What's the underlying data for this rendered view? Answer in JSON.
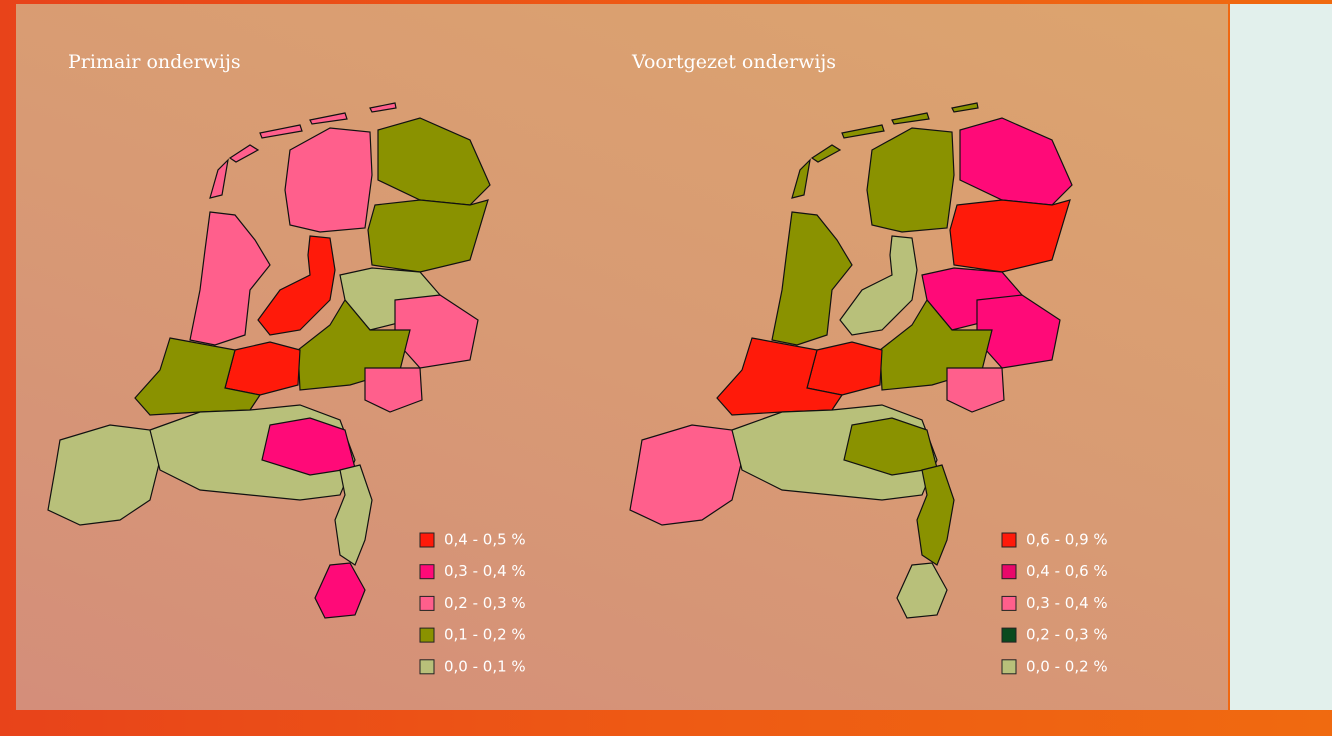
{
  "maps": [
    {
      "title": "Primair onderwijs",
      "legend": [
        {
          "label": "0,4 - 0,5 %",
          "color": "#ff1a0a"
        },
        {
          "label": "0,3 - 0,4 %",
          "color": "#ff0a78"
        },
        {
          "label": "0,2 - 0,3 %",
          "color": "#ff5f8c"
        },
        {
          "label": "0,1 - 0,2 %",
          "color": "#8a9200"
        },
        {
          "label": "0,0 - 0,1 %",
          "color": "#b8c07a"
        }
      ]
    },
    {
      "title": "Voortgezet onderwijs",
      "legend": [
        {
          "label": "0,6 - 0,9 %",
          "color": "#ff1a0a"
        },
        {
          "label": "0,4 - 0,6 %",
          "color": "#e8086a"
        },
        {
          "label": "0,3 - 0,4 %",
          "color": "#ff5f8c"
        },
        {
          "label": "0,2 - 0,3 %",
          "color": "#0a4a1e"
        },
        {
          "label": "0,0 - 0,2 %",
          "color": "#b8c07a"
        }
      ]
    }
  ]
}
